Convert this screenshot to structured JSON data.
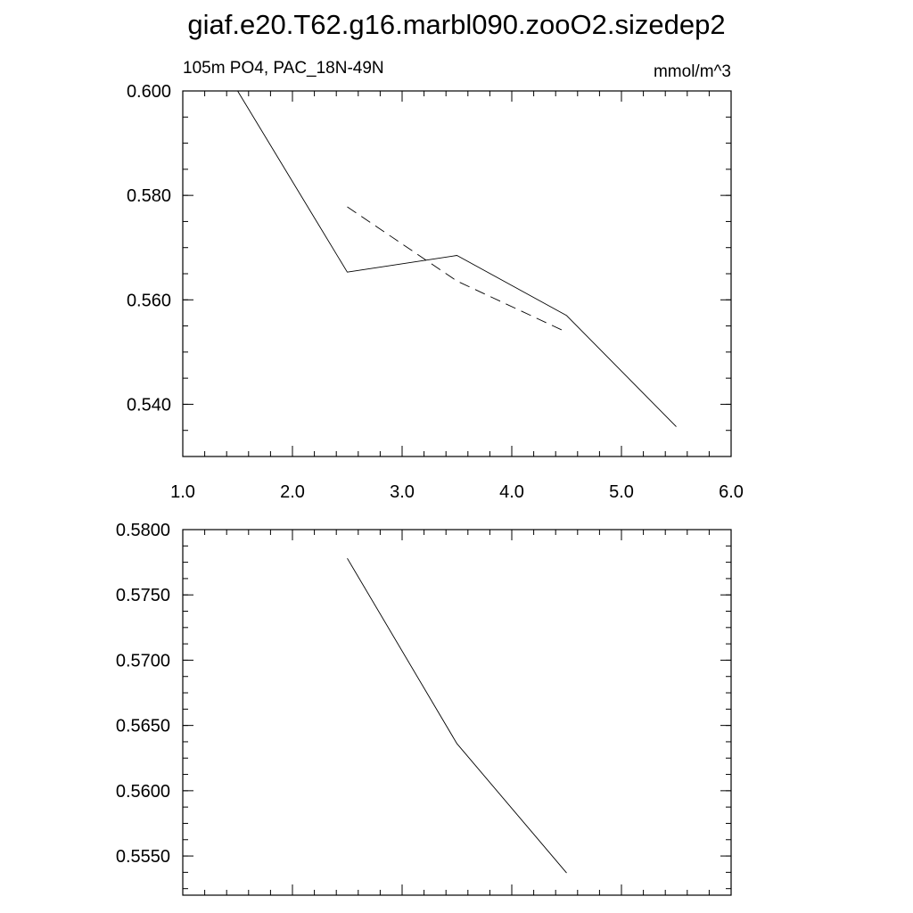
{
  "figure": {
    "title": "giaf.e20.T62.g16.marbl090.zooO2.sizedep2"
  },
  "chart_data": [
    {
      "type": "line",
      "title": "",
      "left_string": "105m PO4, PAC_18N-49N",
      "right_string": "mmol/m^3",
      "xlabel": "",
      "ylabel": "",
      "xlim": [
        1.0,
        6.0
      ],
      "ylim": [
        0.53,
        0.6
      ],
      "xticks": [
        1.0,
        2.0,
        3.0,
        4.0,
        5.0,
        6.0
      ],
      "xtick_labels": [
        "1.0",
        "2.0",
        "3.0",
        "4.0",
        "5.0",
        "6.0"
      ],
      "yticks": [
        0.54,
        0.56,
        0.58,
        0.6
      ],
      "ytick_labels": [
        "0.540",
        "0.560",
        "0.580",
        "0.600"
      ],
      "grid": false,
      "series": [
        {
          "style": "solid",
          "x": [
            1.5,
            2.5,
            3.5,
            4.5,
            5.5
          ],
          "y": [
            0.6,
            0.5653,
            0.5685,
            0.557,
            0.5357
          ]
        },
        {
          "style": "dashed",
          "x": [
            2.5,
            3.5,
            4.5
          ],
          "y": [
            0.5778,
            0.5636,
            0.5538
          ]
        }
      ]
    },
    {
      "type": "line",
      "title": "",
      "xlabel": "",
      "ylabel": "",
      "xlim": [
        1.0,
        6.0
      ],
      "ylim": [
        0.552,
        0.58
      ],
      "xticks": [
        1.0,
        2.0,
        3.0,
        4.0,
        5.0,
        6.0
      ],
      "xtick_labels": [],
      "yticks": [
        0.555,
        0.56,
        0.565,
        0.57,
        0.575,
        0.58
      ],
      "ytick_labels": [
        "0.5550",
        "0.5600",
        "0.5650",
        "0.5700",
        "0.5750",
        "0.5800"
      ],
      "grid": false,
      "series": [
        {
          "style": "solid",
          "x": [
            2.5,
            3.5,
            4.5
          ],
          "y": [
            0.5778,
            0.5636,
            0.5537
          ]
        }
      ]
    }
  ]
}
